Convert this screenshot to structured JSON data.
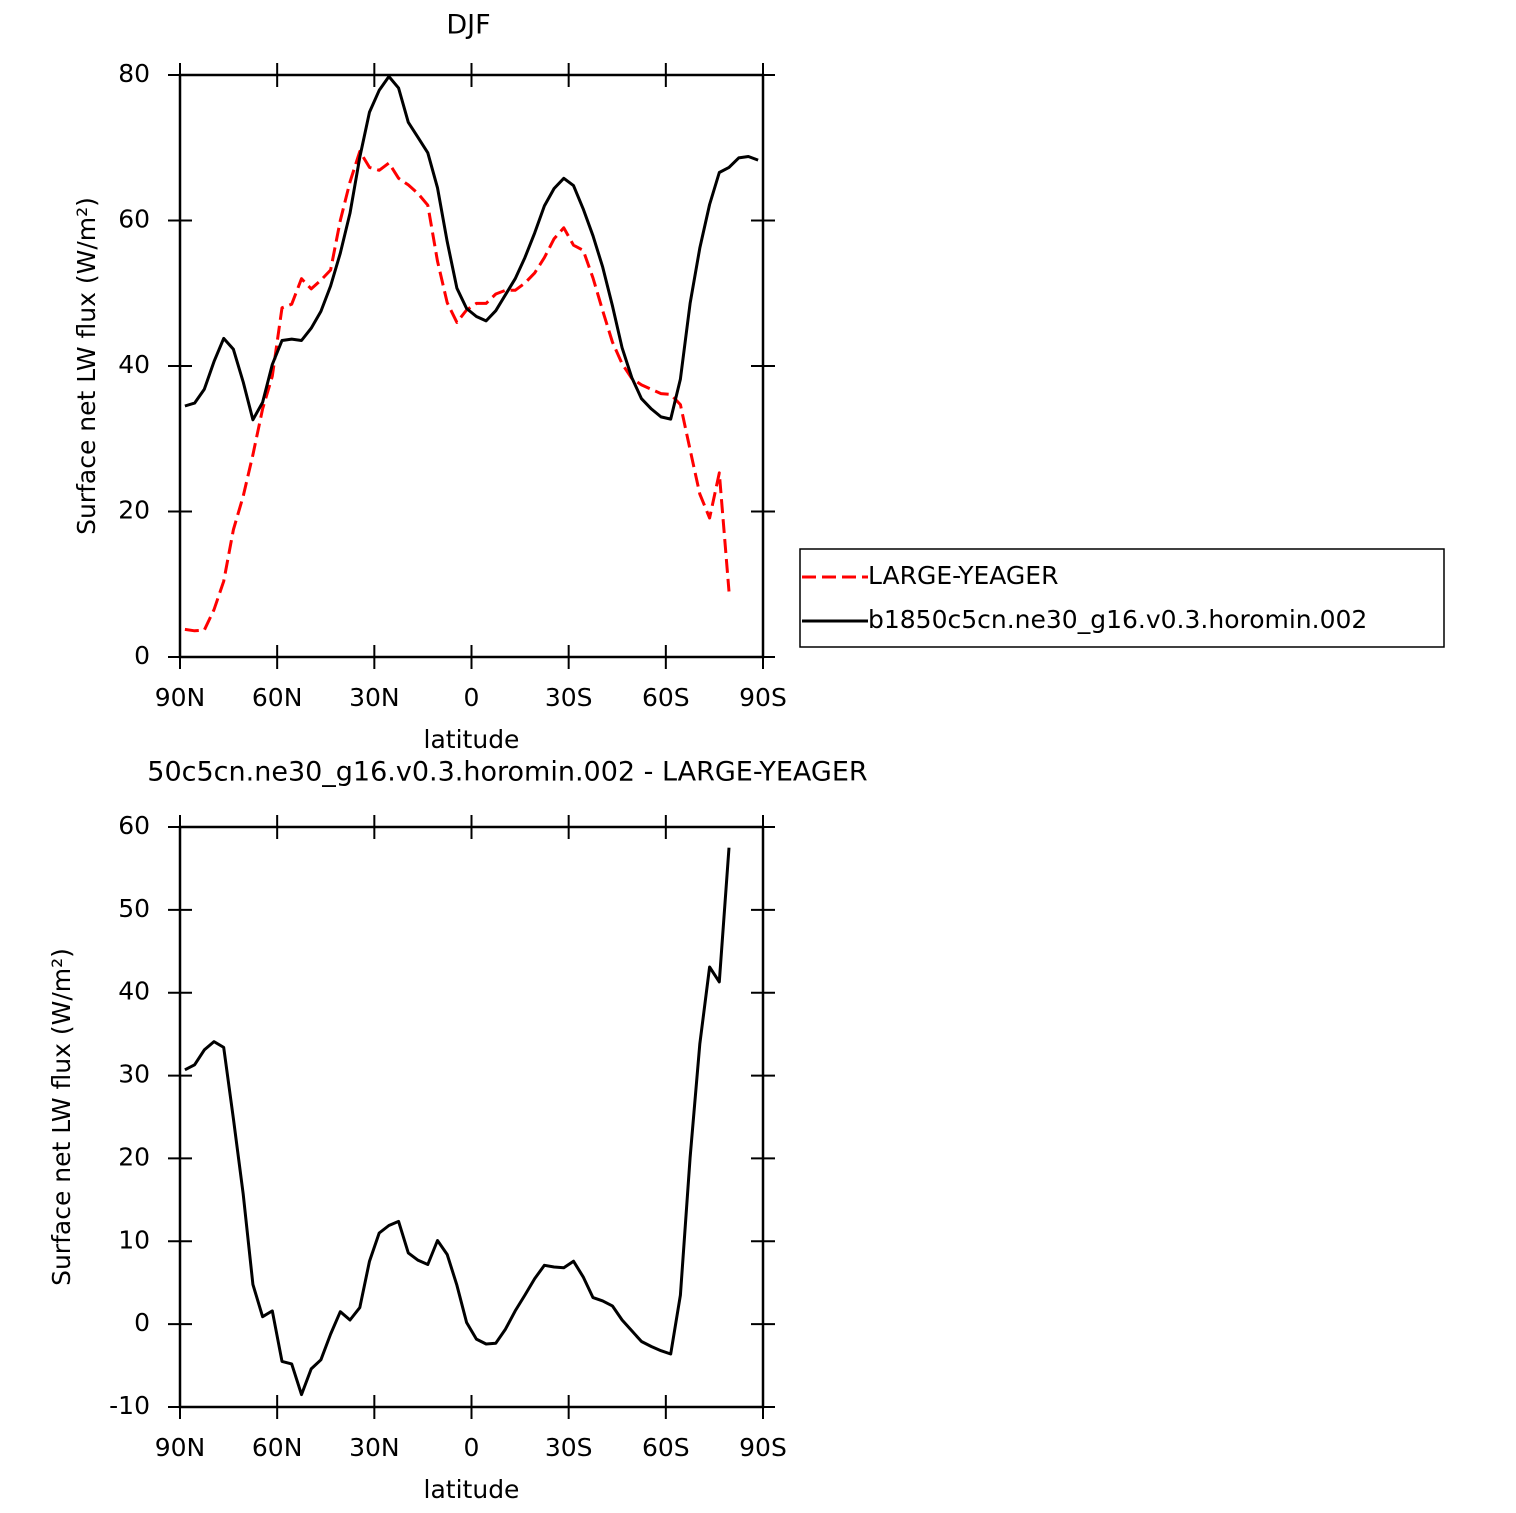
{
  "chart_data": [
    {
      "type": "line",
      "title": "DJF",
      "x_label": "latitude",
      "y_label": "Surface net LW flux (W/m²)",
      "x": [
        88.5,
        85.5,
        82.5,
        79.5,
        76.5,
        73.5,
        70.5,
        67.5,
        64.5,
        61.5,
        58.5,
        55.5,
        52.5,
        49.5,
        46.5,
        43.5,
        40.5,
        37.5,
        34.5,
        31.5,
        28.5,
        25.5,
        22.5,
        19.5,
        16.5,
        13.5,
        10.5,
        7.5,
        4.5,
        1.5,
        -1.5,
        -4.5,
        -7.5,
        -10.5,
        -13.5,
        -16.5,
        -19.5,
        -22.5,
        -25.5,
        -28.5,
        -31.5,
        -34.5,
        -37.5,
        -40.5,
        -43.5,
        -46.5,
        -49.5,
        -52.5,
        -55.5,
        -58.5,
        -61.5,
        -64.5,
        -67.5,
        -70.5,
        -73.5,
        -76.5,
        -79.5,
        -82.5,
        -85.5,
        -88.5
      ],
      "series": [
        {
          "name": "LARGE-YEAGER",
          "color": "#ff0000",
          "dashed": true,
          "values": [
            3.8,
            3.6,
            3.7,
            6.5,
            10.4,
            17.5,
            22.1,
            27.8,
            34.1,
            38.6,
            48,
            48.5,
            52,
            50.6,
            51.8,
            53.2,
            60,
            65.3,
            69.5,
            67.3,
            66.9,
            67.9,
            65.8,
            64.9,
            63.7,
            62.1,
            54.4,
            48.7,
            46,
            47.7,
            48.6,
            48.6,
            49.9,
            50.4,
            50.4,
            51.4,
            52.8,
            54.9,
            57.5,
            59,
            56.6,
            55.9,
            52.1,
            47.6,
            43.3,
            40.3,
            38.3,
            37.4,
            36.8,
            36.2,
            36.1,
            34.7,
            28.5,
            22.4,
            19.1,
            25.3,
            9,
            null,
            null,
            null
          ]
        },
        {
          "name": "b1850c5cn.ne30_g16.v0.3.horomin.002",
          "color": "#000000",
          "dashed": false,
          "values": [
            34.5,
            34.9,
            36.8,
            40.6,
            43.8,
            42.3,
            37.8,
            32.6,
            35,
            40.2,
            43.5,
            43.7,
            43.5,
            45.2,
            47.5,
            51,
            55.5,
            61,
            68.7,
            74.9,
            77.9,
            79.8,
            78.2,
            73.5,
            71.4,
            69.3,
            64.5,
            57.1,
            50.7,
            47.9,
            46.8,
            46.2,
            47.6,
            49.8,
            52,
            54.9,
            58.3,
            62,
            64.4,
            65.8,
            64.8,
            61.6,
            57.9,
            53.6,
            48.3,
            42.5,
            38.4,
            35.5,
            34.1,
            33,
            32.7,
            38.2,
            48.6,
            56.2,
            62.2,
            66.6,
            67.3,
            68.6,
            68.8,
            68.3
          ]
        }
      ],
      "xlim": [
        90,
        -90
      ],
      "xticks": [
        {
          "value": 90,
          "label": "90N"
        },
        {
          "value": 60,
          "label": "60N"
        },
        {
          "value": 30,
          "label": "30N"
        },
        0,
        {
          "value": -30,
          "label": "30S"
        },
        {
          "value": -60,
          "label": "60S"
        },
        {
          "value": -90,
          "label": "90S"
        }
      ],
      "ylim": [
        0,
        80
      ],
      "yticks": [
        0,
        20,
        40,
        60,
        80
      ],
      "legend": "outside-right"
    },
    {
      "type": "line",
      "title": "50c5cn.ne30_g16.v0.3.horomin.002 - LARGE-YEAGER",
      "x_label": "latitude",
      "y_label": "Surface net LW flux (W/m²)",
      "x": [
        88.5,
        85.5,
        82.5,
        79.5,
        76.5,
        73.5,
        70.5,
        67.5,
        64.5,
        61.5,
        58.5,
        55.5,
        52.5,
        49.5,
        46.5,
        43.5,
        40.5,
        37.5,
        34.5,
        31.5,
        28.5,
        25.5,
        22.5,
        19.5,
        16.5,
        13.5,
        10.5,
        7.5,
        4.5,
        1.5,
        -1.5,
        -4.5,
        -7.5,
        -10.5,
        -13.5,
        -16.5,
        -19.5,
        -22.5,
        -25.5,
        -28.5,
        -31.5,
        -34.5,
        -37.5,
        -40.5,
        -43.5,
        -46.5,
        -49.5,
        -52.5,
        -55.5,
        -58.5,
        -61.5,
        -64.5,
        -67.5,
        -70.5,
        -73.5,
        -76.5,
        -79.5,
        -82.5,
        -85.5,
        -88.5
      ],
      "series": [
        {
          "color": "#000000",
          "dashed": false,
          "values": [
            30.7,
            31.3,
            33.1,
            34.1,
            33.4,
            24.8,
            15.7,
            4.8,
            0.9,
            1.6,
            -4.5,
            -4.8,
            -8.5,
            -5.4,
            -4.3,
            -1.2,
            1.5,
            0.5,
            2,
            7.6,
            11,
            11.9,
            12.4,
            8.6,
            7.7,
            7.2,
            10.1,
            8.4,
            4.7,
            0.2,
            -1.8,
            -2.4,
            -2.3,
            -0.6,
            1.6,
            3.5,
            5.5,
            7.1,
            6.9,
            6.8,
            7.6,
            5.7,
            3.2,
            2.8,
            2.2,
            0.5,
            -0.8,
            -2.1,
            -2.7,
            -3.2,
            -3.6,
            3.5,
            20.1,
            33.8,
            43.1,
            41.3,
            57.5,
            null,
            null,
            null
          ]
        }
      ],
      "xlim": [
        90,
        -90
      ],
      "xticks": [
        {
          "value": 90,
          "label": "90N"
        },
        {
          "value": 60,
          "label": "60N"
        },
        {
          "value": 30,
          "label": "30N"
        },
        0,
        {
          "value": -30,
          "label": "30S"
        },
        {
          "value": -60,
          "label": "60S"
        },
        {
          "value": -90,
          "label": "90S"
        }
      ],
      "ylim": [
        -10,
        60
      ],
      "yticks": [
        -10,
        0,
        10,
        20,
        30,
        40,
        50,
        60
      ]
    }
  ]
}
